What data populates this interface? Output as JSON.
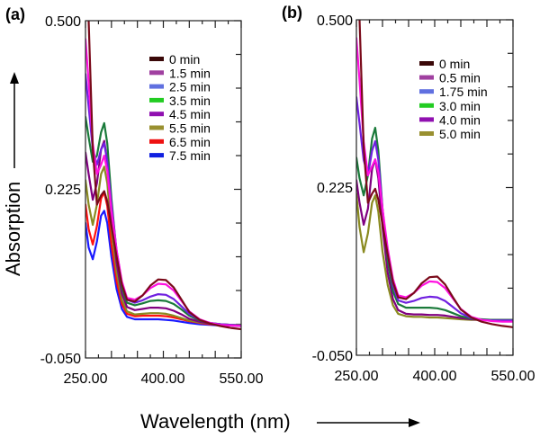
{
  "figure": {
    "ylabel": "Absorption",
    "xlabel": "Wavelength (nm)"
  },
  "chart_data": [
    {
      "type": "line",
      "panel_label": "(a)",
      "xlabel": "Wavelength (nm)",
      "ylabel": "Absorption",
      "xlim": [
        250,
        550
      ],
      "ylim": [
        -0.05,
        0.5
      ],
      "xticks_major": [
        250,
        300,
        350,
        400,
        450,
        500,
        550
      ],
      "xtick_labels": [
        "250.00",
        "400.00",
        "550.00"
      ],
      "xtick_label_values": [
        250,
        400,
        550
      ],
      "yticks": [
        -0.05,
        0.0333,
        0.1167,
        0.1417,
        0.225,
        0.3083,
        0.3917,
        0.4083,
        0.5
      ],
      "ytick_major": [
        -0.05,
        0.0208,
        0.0917,
        0.1583,
        0.225,
        0.2917,
        0.3583,
        0.4292,
        0.5
      ],
      "ytick_labels": [
        "0.500",
        "0.225",
        "-0.050"
      ],
      "ytick_label_values": [
        0.5,
        0.225,
        -0.05
      ],
      "grid": false,
      "legend_position": "top-right",
      "x": [
        250,
        256,
        264,
        272,
        280,
        286,
        292,
        300,
        310,
        320,
        330,
        345,
        360,
        375,
        390,
        405,
        420,
        435,
        450,
        470,
        490,
        510,
        530,
        550
      ],
      "series": [
        {
          "name": "0 min",
          "color": "#7a0a1a",
          "legend_color": "#3a0808",
          "values": [
            0.62,
            0.5,
            0.29,
            0.2,
            0.215,
            0.222,
            0.205,
            0.165,
            0.115,
            0.07,
            0.045,
            0.042,
            0.052,
            0.068,
            0.078,
            0.077,
            0.065,
            0.045,
            0.025,
            0.012,
            0.006,
            0.002,
            -0.001,
            -0.003
          ]
        },
        {
          "name": "1.5 min",
          "color": "#ff10e0",
          "legend_color": "#a040a0",
          "values": [
            0.47,
            0.4,
            0.3,
            0.25,
            0.265,
            0.28,
            0.255,
            0.19,
            0.125,
            0.075,
            0.048,
            0.045,
            0.052,
            0.064,
            0.071,
            0.07,
            0.06,
            0.043,
            0.026,
            0.013,
            0.007,
            0.004,
            0.003,
            0.002
          ]
        },
        {
          "name": "2.5 min",
          "color": "#7020e0",
          "legend_color": "#6070e0",
          "values": [
            0.413,
            0.36,
            0.29,
            0.265,
            0.29,
            0.3,
            0.27,
            0.2,
            0.125,
            0.072,
            0.045,
            0.04,
            0.044,
            0.05,
            0.054,
            0.053,
            0.046,
            0.034,
            0.022,
            0.012,
            0.007,
            0.005,
            0.004,
            0.003
          ]
        },
        {
          "name": "3.5 min",
          "color": "#1a7a3a",
          "legend_color": "#22cc22",
          "values": [
            0.343,
            0.31,
            0.27,
            0.28,
            0.318,
            0.333,
            0.3,
            0.21,
            0.12,
            0.065,
            0.04,
            0.036,
            0.039,
            0.043,
            0.044,
            0.043,
            0.038,
            0.029,
            0.019,
            0.011,
            0.007,
            0.005,
            0.004,
            0.003
          ]
        },
        {
          "name": "4.5 min",
          "color": "#800080",
          "legend_color": "#9010b0",
          "values": [
            0.285,
            0.25,
            0.208,
            0.235,
            0.29,
            0.304,
            0.27,
            0.185,
            0.105,
            0.055,
            0.033,
            0.028,
            0.03,
            0.032,
            0.032,
            0.031,
            0.027,
            0.021,
            0.014,
            0.009,
            0.006,
            0.004,
            0.003,
            0.002
          ]
        },
        {
          "name": "5.5 min",
          "color": "#8a8a20",
          "legend_color": "#999030",
          "values": [
            0.24,
            0.2,
            0.167,
            0.2,
            0.25,
            0.262,
            0.235,
            0.16,
            0.09,
            0.045,
            0.026,
            0.021,
            0.022,
            0.023,
            0.023,
            0.022,
            0.019,
            0.015,
            0.011,
            0.008,
            0.006,
            0.005,
            0.004,
            0.004
          ]
        },
        {
          "name": "6.5 min",
          "color": "#ff1010",
          "legend_color": "#ee1111",
          "values": [
            0.2,
            0.16,
            0.135,
            0.165,
            0.21,
            0.22,
            0.198,
            0.135,
            0.075,
            0.038,
            0.022,
            0.018,
            0.019,
            0.019,
            0.019,
            0.018,
            0.016,
            0.013,
            0.01,
            0.007,
            0.005,
            0.004,
            0.003,
            0.003
          ]
        },
        {
          "name": "7.5 min",
          "color": "#1a1aff",
          "legend_color": "#1020e0",
          "values": [
            0.17,
            0.13,
            0.111,
            0.14,
            0.182,
            0.19,
            0.17,
            0.115,
            0.062,
            0.03,
            0.017,
            0.013,
            0.013,
            0.013,
            0.013,
            0.012,
            0.011,
            0.009,
            0.007,
            0.005,
            0.004,
            0.003,
            0.003,
            0.002
          ]
        }
      ]
    },
    {
      "type": "line",
      "panel_label": "(b)",
      "xlabel": "Wavelength (nm)",
      "ylabel": "Absorption",
      "xlim": [
        250,
        550
      ],
      "ylim": [
        -0.05,
        0.5
      ],
      "xticks_major": [
        250,
        300,
        350,
        400,
        450,
        500,
        550
      ],
      "xtick_labels": [
        "250.00",
        "400.00",
        "550.00"
      ],
      "xtick_label_values": [
        250,
        400,
        550
      ],
      "ytick_labels": [
        "0.500",
        "0.225",
        "-0.050"
      ],
      "ytick_label_values": [
        0.5,
        0.225,
        -0.05
      ],
      "grid": false,
      "legend_position": "top-right",
      "x": [
        250,
        256,
        264,
        272,
        280,
        286,
        292,
        300,
        310,
        320,
        330,
        345,
        360,
        375,
        390,
        405,
        420,
        435,
        450,
        470,
        490,
        510,
        530,
        550
      ],
      "series": [
        {
          "name": "0 min",
          "color": "#7a0a1a",
          "legend_color": "#3a0808",
          "values": [
            0.62,
            0.5,
            0.29,
            0.2,
            0.215,
            0.223,
            0.205,
            0.165,
            0.115,
            0.07,
            0.045,
            0.042,
            0.052,
            0.068,
            0.078,
            0.079,
            0.066,
            0.045,
            0.025,
            0.012,
            0.005,
            0.001,
            -0.002,
            -0.004
          ]
        },
        {
          "name": "0.5 min",
          "color": "#ff10e0",
          "legend_color": "#a040a0",
          "values": [
            0.47,
            0.4,
            0.3,
            0.245,
            0.26,
            0.271,
            0.25,
            0.19,
            0.125,
            0.075,
            0.048,
            0.045,
            0.052,
            0.064,
            0.071,
            0.07,
            0.06,
            0.043,
            0.026,
            0.013,
            0.008,
            0.006,
            0.005,
            0.005
          ]
        },
        {
          "name": "1.75 min",
          "color": "#7020e0",
          "legend_color": "#6070e0",
          "values": [
            0.373,
            0.33,
            0.27,
            0.245,
            0.285,
            0.301,
            0.27,
            0.19,
            0.115,
            0.065,
            0.04,
            0.036,
            0.039,
            0.044,
            0.046,
            0.045,
            0.039,
            0.029,
            0.019,
            0.011,
            0.008,
            0.007,
            0.007,
            0.007
          ]
        },
        {
          "name": "3.0 min",
          "color": "#1a7a3a",
          "legend_color": "#22cc22",
          "values": [
            0.274,
            0.24,
            0.212,
            0.245,
            0.305,
            0.323,
            0.285,
            0.19,
            0.105,
            0.055,
            0.034,
            0.028,
            0.028,
            0.028,
            0.028,
            0.027,
            0.024,
            0.019,
            0.014,
            0.01,
            0.009,
            0.008,
            0.008,
            0.008
          ]
        },
        {
          "name": "4.0 min",
          "color": "#800080",
          "legend_color": "#9010b0",
          "values": [
            0.237,
            0.2,
            0.164,
            0.19,
            0.255,
            0.271,
            0.24,
            0.16,
            0.085,
            0.042,
            0.024,
            0.018,
            0.017,
            0.017,
            0.016,
            0.016,
            0.015,
            0.013,
            0.011,
            0.009,
            0.008,
            0.008,
            0.008,
            0.008
          ]
        },
        {
          "name": "5.0 min",
          "color": "#8a8a20",
          "legend_color": "#999030",
          "values": [
            0.215,
            0.16,
            0.119,
            0.15,
            0.2,
            0.212,
            0.185,
            0.12,
            0.065,
            0.032,
            0.018,
            0.014,
            0.013,
            0.013,
            0.012,
            0.012,
            0.011,
            0.01,
            0.009,
            0.008,
            0.008,
            0.008,
            0.008,
            0.008
          ]
        }
      ]
    }
  ]
}
